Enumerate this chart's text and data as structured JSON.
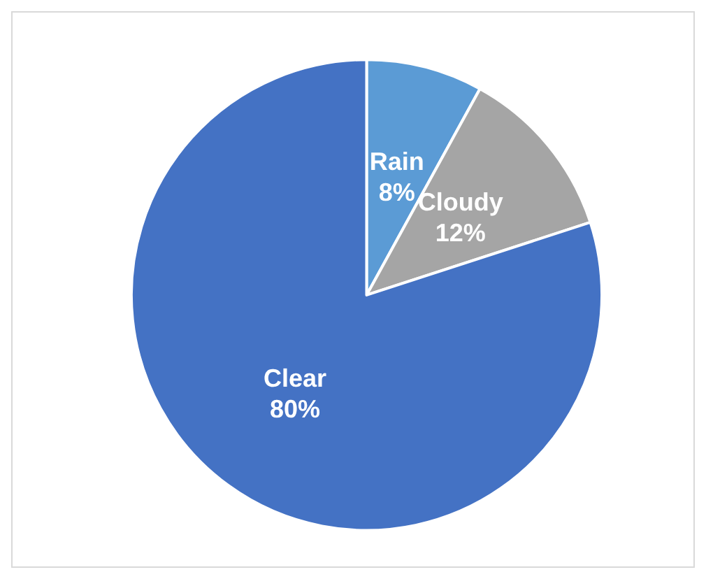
{
  "chart_data": {
    "type": "pie",
    "categories": [
      "Rain",
      "Cloudy",
      "Clear"
    ],
    "values": [
      8,
      12,
      80
    ],
    "value_labels": [
      "8%",
      "12%",
      "80%"
    ],
    "colors": [
      "#5b9bd5",
      "#a5a5a5",
      "#4472c4"
    ],
    "legend": false
  }
}
